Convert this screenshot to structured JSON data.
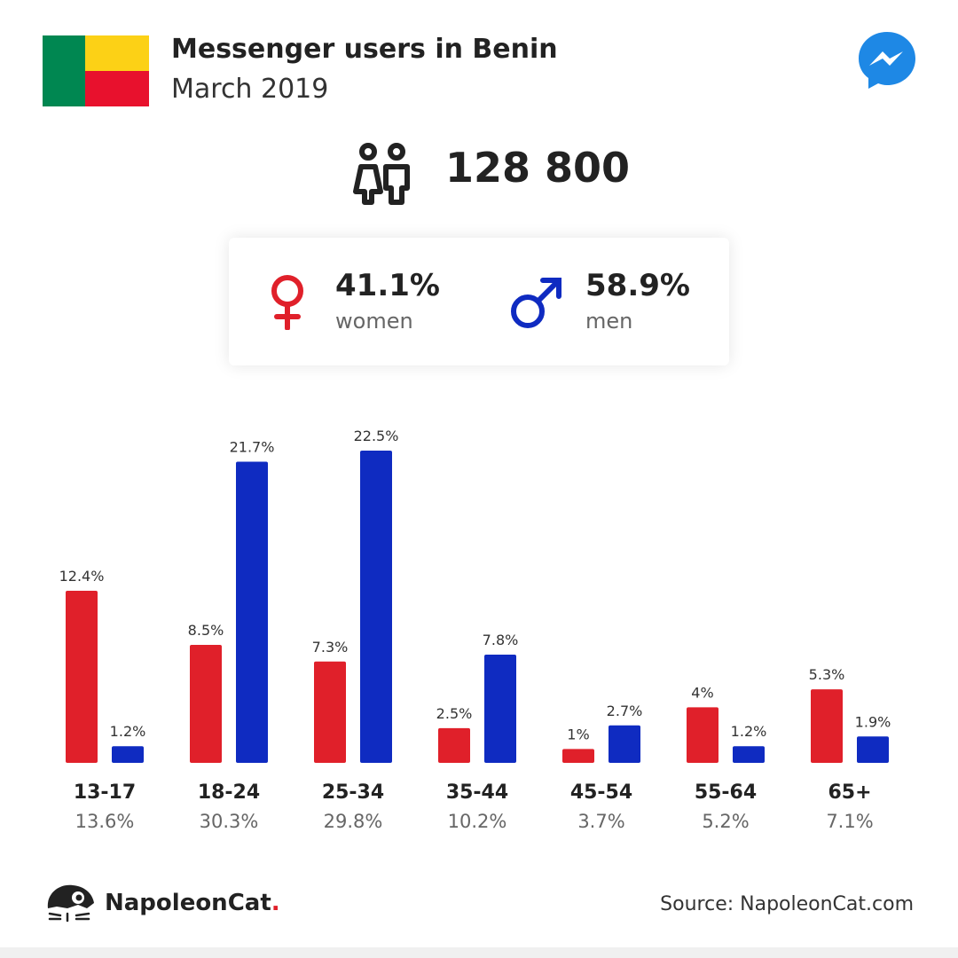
{
  "header": {
    "title": "Messenger users in Benin",
    "subtitle": "March 2019"
  },
  "flag": {
    "colors": {
      "green": "#008751",
      "yellow": "#FCD116",
      "red": "#E8112D"
    }
  },
  "brand_icon": "messenger-icon",
  "total": {
    "icon": "users-icon",
    "value": "128 800"
  },
  "gender": {
    "women": {
      "percent": "41.1%",
      "label": "women",
      "icon": "female-symbol-icon"
    },
    "men": {
      "percent": "58.9%",
      "label": "men",
      "icon": "male-symbol-icon"
    }
  },
  "colors": {
    "women": "#e0202a",
    "men": "#0f2bc1",
    "brand": "#1e88e5"
  },
  "chart_data": {
    "type": "bar",
    "categories": [
      "13-17",
      "18-24",
      "25-34",
      "35-44",
      "45-54",
      "55-64",
      "65+"
    ],
    "category_totals": [
      "13.6%",
      "30.3%",
      "29.8%",
      "10.2%",
      "3.7%",
      "5.2%",
      "7.1%"
    ],
    "series": [
      {
        "values": [
          12.4,
          8.5,
          7.3,
          2.5,
          1,
          4,
          5.3
        ],
        "labels": [
          "12.4%",
          "8.5%",
          "7.3%",
          "2.5%",
          "1%",
          "4%",
          "5.3%"
        ],
        "color": "#e0202a"
      },
      {
        "values": [
          1.2,
          21.7,
          22.5,
          7.8,
          2.7,
          1.2,
          1.9
        ],
        "labels": [
          "1.2%",
          "21.7%",
          "22.5%",
          "7.8%",
          "2.7%",
          "1.2%",
          "1.9%"
        ],
        "color": "#0f2bc1"
      }
    ],
    "ylim": [
      0,
      22.5
    ],
    "grid": false
  },
  "footer": {
    "brand_name": "NapoleonCat",
    "brand_dot": ".",
    "source": "Source: NapoleonCat.com",
    "logo_icon": "napoleoncat-logo-icon"
  }
}
